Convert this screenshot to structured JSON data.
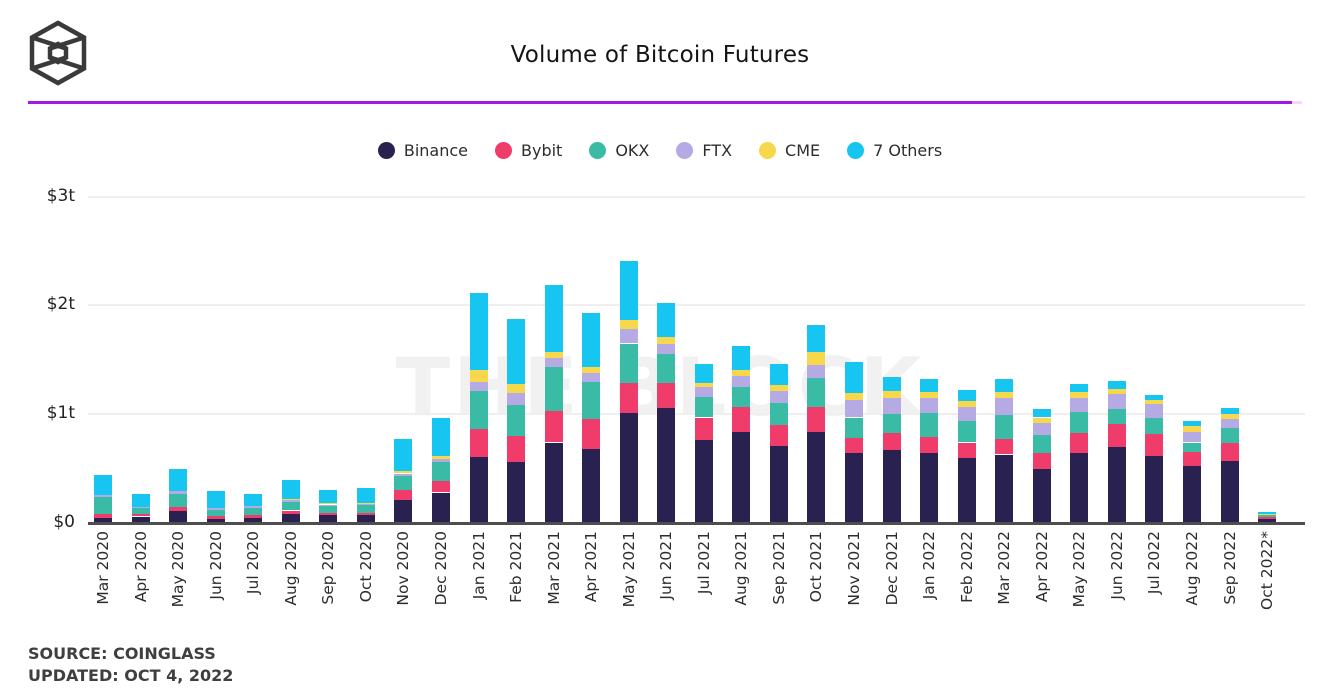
{
  "header": {
    "title": "Volume of Bitcoin Futures",
    "logo": "the-block-cube-logo",
    "divider_color": "#A118E9"
  },
  "chart_data": {
    "type": "bar",
    "stacked": true,
    "title": "Volume of Bitcoin Futures",
    "unit": "USD trillions",
    "watermark": "THE BLOCK",
    "grid": true,
    "legend_position": "top",
    "ylim": [
      0,
      3
    ],
    "y_ticks": [
      "$0",
      "$1t",
      "$2t",
      "$3t"
    ],
    "y_tick_values": [
      0,
      1,
      2,
      3
    ],
    "categories": [
      "Mar 2020",
      "Apr 2020",
      "May 2020",
      "Jun 2020",
      "Jul 2020",
      "Aug 2020",
      "Sep 2020",
      "Oct 2020",
      "Nov 2020",
      "Dec 2020",
      "Jan 2021",
      "Feb 2021",
      "Mar 2021",
      "Apr 2021",
      "May 2021",
      "Jun 2021",
      "Jul 2021",
      "Aug 2021",
      "Sep 2021",
      "Oct 2021",
      "Nov 2021",
      "Dec 2021",
      "Jan 2022",
      "Feb 2022",
      "Mar 2022",
      "Apr 2022",
      "May 2022",
      "Jun 2022",
      "Jul 2022",
      "Aug 2022",
      "Sep 2022",
      "Oct 2022*"
    ],
    "series": [
      {
        "name": "Binance",
        "color": "#292251",
        "values": [
          0.05,
          0.06,
          0.11,
          0.04,
          0.05,
          0.08,
          0.07,
          0.07,
          0.21,
          0.28,
          0.61,
          0.56,
          0.74,
          0.68,
          1.01,
          1.06,
          0.76,
          0.84,
          0.71,
          0.84,
          0.64,
          0.67,
          0.64,
          0.6,
          0.63,
          0.5,
          0.64,
          0.7,
          0.62,
          0.52,
          0.57,
          0.04
        ]
      },
      {
        "name": "Bybit",
        "color": "#F03C6B",
        "values": [
          0.03,
          0.02,
          0.04,
          0.025,
          0.02,
          0.035,
          0.025,
          0.025,
          0.09,
          0.105,
          0.25,
          0.24,
          0.29,
          0.275,
          0.28,
          0.23,
          0.21,
          0.23,
          0.19,
          0.23,
          0.14,
          0.155,
          0.15,
          0.14,
          0.14,
          0.14,
          0.19,
          0.21,
          0.2,
          0.13,
          0.165,
          0.015
        ]
      },
      {
        "name": "OKX",
        "color": "#3ABBA5",
        "values": [
          0.16,
          0.06,
          0.12,
          0.055,
          0.065,
          0.08,
          0.065,
          0.07,
          0.13,
          0.175,
          0.35,
          0.285,
          0.4,
          0.34,
          0.36,
          0.26,
          0.19,
          0.18,
          0.2,
          0.26,
          0.19,
          0.18,
          0.22,
          0.2,
          0.22,
          0.17,
          0.19,
          0.14,
          0.145,
          0.09,
          0.14,
          0.015
        ]
      },
      {
        "name": "FTX",
        "color": "#B5AAE3",
        "values": [
          0.02,
          0.01,
          0.02,
          0.02,
          0.02,
          0.015,
          0.01,
          0.01,
          0.025,
          0.03,
          0.09,
          0.11,
          0.09,
          0.08,
          0.13,
          0.1,
          0.09,
          0.1,
          0.11,
          0.12,
          0.16,
          0.14,
          0.14,
          0.13,
          0.16,
          0.11,
          0.13,
          0.14,
          0.13,
          0.1,
          0.08,
          0.01
        ]
      },
      {
        "name": "CME",
        "color": "#F7D74B",
        "values": [
          0,
          0,
          0,
          0,
          0,
          0.015,
          0.01,
          0.01,
          0.025,
          0.03,
          0.11,
          0.08,
          0.05,
          0.06,
          0.09,
          0.06,
          0.04,
          0.06,
          0.06,
          0.12,
          0.07,
          0.065,
          0.055,
          0.055,
          0.055,
          0.05,
          0.05,
          0.04,
          0.04,
          0.05,
          0.045,
          0.005
        ]
      },
      {
        "name": "7 Others",
        "color": "#16C5F0",
        "values": [
          0.18,
          0.12,
          0.21,
          0.15,
          0.11,
          0.17,
          0.12,
          0.135,
          0.29,
          0.35,
          0.7,
          0.6,
          0.62,
          0.5,
          0.54,
          0.31,
          0.17,
          0.22,
          0.19,
          0.25,
          0.28,
          0.13,
          0.12,
          0.1,
          0.12,
          0.08,
          0.08,
          0.08,
          0.04,
          0.05,
          0.055,
          0.015
        ]
      }
    ]
  },
  "footer": {
    "source": "SOURCE: COINGLASS",
    "updated": "UPDATED: OCT 4, 2022"
  }
}
